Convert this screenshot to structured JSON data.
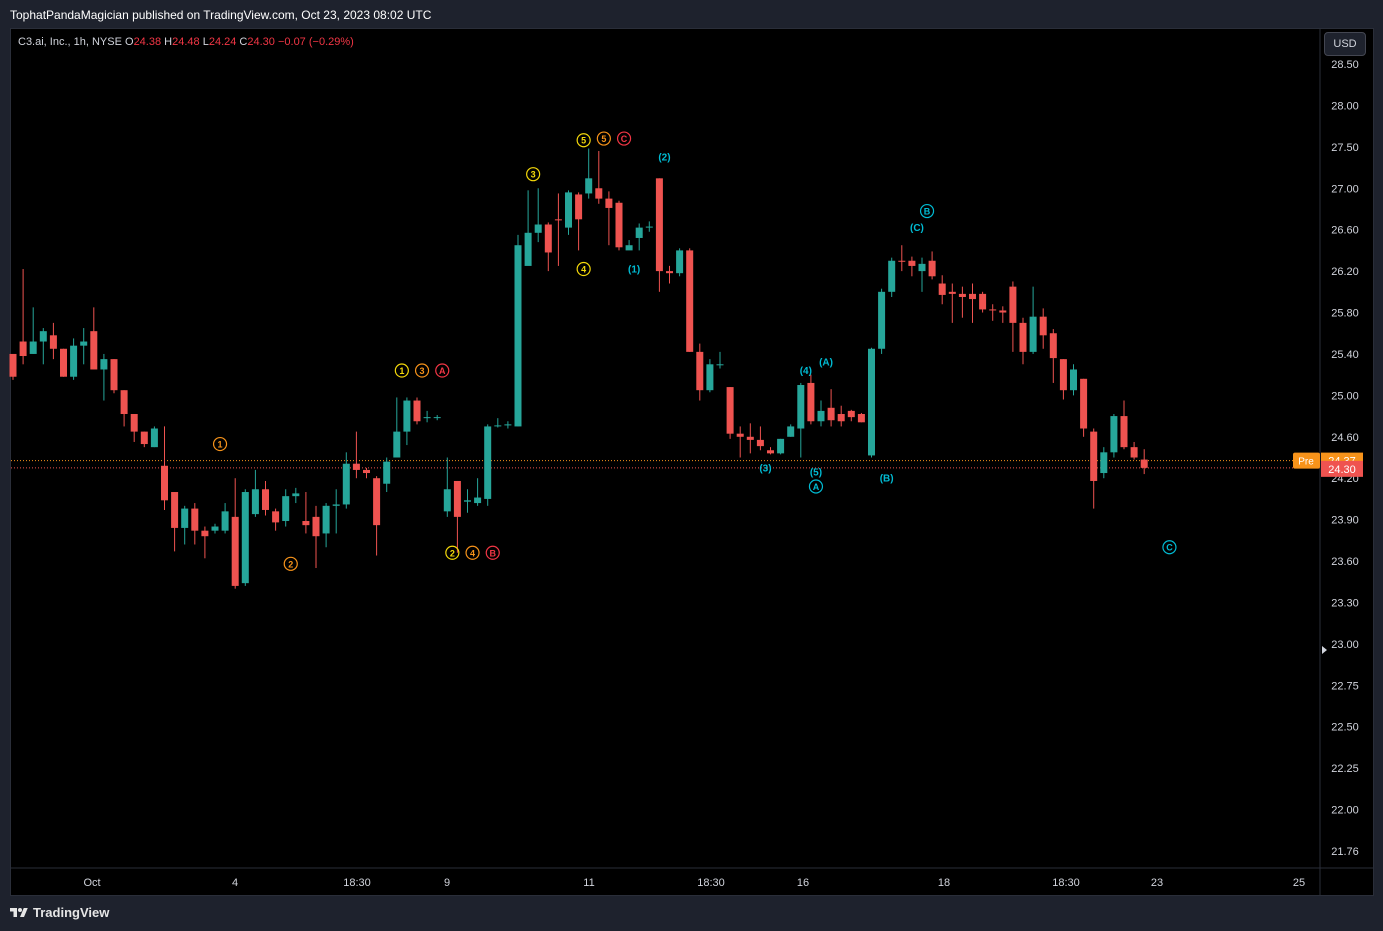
{
  "header": {
    "publisher_line": "TophatPandaMagician published on TradingView.com, Oct 23, 2023 08:02 UTC"
  },
  "legend": {
    "symbol": "C3.ai, Inc., 1h, NYSE",
    "o_label": "O",
    "o_value": "24.38",
    "h_label": "H",
    "h_value": "24.48",
    "l_label": "L",
    "l_value": "24.24",
    "c_label": "C",
    "c_value": "24.30",
    "change": "−0.07 (−0.29%)"
  },
  "currency_button": "USD",
  "footer": {
    "brand": "TradingView"
  },
  "colors": {
    "up": "#26a69a",
    "down": "#ef5350",
    "pre": "#f7931a",
    "wave_yellow": "#f5d90a",
    "wave_orange": "#f7931a",
    "wave_red": "#f23645",
    "wave_cyan": "#00bcd4"
  },
  "chart_data": {
    "type": "candlestick",
    "ylim": [
      21.6,
      28.6
    ],
    "y_ticks": [
      "28.50",
      "28.00",
      "27.50",
      "27.00",
      "26.60",
      "26.20",
      "25.80",
      "25.40",
      "25.00",
      "24.60",
      "24.20",
      "23.90",
      "23.60",
      "23.30",
      "23.00",
      "22.75",
      "22.50",
      "22.25",
      "22.00",
      "21.76"
    ],
    "x_ticks": [
      "Oct",
      "4",
      "18:30",
      "9",
      "11",
      "18:30",
      "16",
      "18",
      "18:30",
      "23",
      "25"
    ],
    "last_price": {
      "label": "24.30",
      "value": 24.3
    },
    "pre_price": {
      "tag": "Pre",
      "label": "24.37",
      "value": 24.37
    },
    "candles": [
      [
        25.4,
        25.18,
        25.4,
        25.15
      ],
      [
        25.52,
        25.38,
        26.22,
        25.3
      ],
      [
        25.4,
        25.52,
        25.85,
        25.4
      ],
      [
        25.52,
        25.62,
        25.65,
        25.3
      ],
      [
        25.58,
        25.45,
        25.7,
        25.35
      ],
      [
        25.45,
        25.18,
        25.45,
        25.18
      ],
      [
        25.18,
        25.48,
        25.55,
        25.15
      ],
      [
        25.48,
        25.52,
        25.65,
        25.3
      ],
      [
        25.62,
        25.25,
        25.85,
        25.25
      ],
      [
        25.25,
        25.35,
        25.4,
        24.95
      ],
      [
        25.35,
        25.05,
        25.35,
        25.02
      ],
      [
        25.05,
        24.82,
        25.05,
        24.7
      ],
      [
        24.82,
        24.65,
        24.82,
        24.55
      ],
      [
        24.65,
        24.53,
        24.65,
        24.5
      ],
      [
        24.5,
        24.68,
        24.7,
        24.5
      ],
      [
        24.32,
        24.04,
        24.7,
        23.97
      ],
      [
        24.1,
        23.84,
        24.1,
        23.67
      ],
      [
        23.84,
        23.98,
        24.0,
        23.72
      ],
      [
        23.98,
        23.82,
        24.02,
        23.72
      ],
      [
        23.82,
        23.78,
        23.85,
        23.62
      ],
      [
        23.82,
        23.85,
        23.87,
        23.8
      ],
      [
        23.82,
        23.96,
        24.02,
        23.8
      ],
      [
        23.92,
        23.42,
        24.2,
        23.4
      ],
      [
        23.44,
        24.1,
        24.12,
        23.42
      ],
      [
        23.94,
        24.12,
        24.28,
        23.92
      ],
      [
        24.12,
        23.97,
        24.18,
        23.93
      ],
      [
        23.96,
        23.88,
        23.98,
        23.82
      ],
      [
        23.89,
        24.07,
        24.12,
        23.85
      ],
      [
        24.07,
        24.09,
        24.13,
        24.02
      ],
      [
        23.89,
        23.86,
        24.1,
        23.8
      ],
      [
        23.92,
        23.78,
        24.0,
        23.55
      ],
      [
        23.8,
        24.0,
        24.02,
        23.7
      ],
      [
        24.0,
        24.01,
        24.12,
        23.8
      ],
      [
        24.01,
        24.34,
        24.45,
        23.98
      ],
      [
        24.34,
        24.28,
        24.65,
        24.2
      ],
      [
        24.28,
        24.25,
        24.3,
        24.2
      ],
      [
        24.2,
        23.86,
        24.22,
        23.64
      ],
      [
        24.16,
        24.36,
        24.4,
        24.1
      ],
      [
        24.4,
        24.65,
        24.98,
        24.4
      ],
      [
        24.65,
        24.95,
        24.98,
        24.52
      ],
      [
        24.95,
        24.75,
        24.98,
        24.72
      ],
      [
        24.78,
        24.79,
        24.85,
        24.74
      ],
      [
        24.79,
        24.79,
        24.81,
        24.76
      ],
      [
        23.96,
        24.12,
        24.4,
        23.92
      ],
      [
        24.18,
        23.92,
        24.18,
        23.66
      ],
      [
        24.03,
        24.04,
        24.12,
        23.95
      ],
      [
        24.02,
        24.06,
        24.2,
        24.0
      ],
      [
        24.05,
        24.7,
        24.72,
        24.0
      ],
      [
        24.71,
        24.71,
        24.78,
        24.69
      ],
      [
        24.71,
        24.72,
        24.75,
        24.68
      ],
      [
        24.7,
        26.45,
        26.55,
        24.7
      ],
      [
        26.25,
        26.57,
        26.98,
        26.38
      ],
      [
        26.57,
        26.65,
        27.0,
        26.48
      ],
      [
        26.65,
        26.38,
        26.67,
        26.2
      ],
      [
        26.7,
        26.69,
        26.95,
        26.25
      ],
      [
        26.62,
        26.96,
        26.98,
        26.55
      ],
      [
        26.94,
        26.7,
        26.96,
        26.4
      ],
      [
        26.95,
        27.12,
        27.48,
        26.9
      ],
      [
        27.0,
        26.9,
        27.45,
        26.85
      ],
      [
        26.9,
        26.81,
        26.97,
        26.45
      ],
      [
        26.86,
        26.43,
        26.88,
        26.4
      ],
      [
        26.4,
        26.45,
        26.5,
        26.42
      ],
      [
        26.52,
        26.62,
        26.66,
        26.4
      ],
      [
        26.62,
        26.63,
        26.68,
        26.58
      ],
      [
        27.12,
        26.2,
        27.12,
        26.0
      ],
      [
        26.2,
        26.18,
        26.25,
        26.08
      ],
      [
        26.18,
        26.4,
        26.42,
        26.15
      ],
      [
        26.4,
        25.42,
        26.42,
        25.42
      ],
      [
        25.42,
        25.05,
        25.5,
        24.95
      ],
      [
        25.05,
        25.3,
        25.35,
        25.03
      ],
      [
        25.3,
        25.3,
        25.42,
        25.26
      ],
      [
        25.08,
        24.63,
        25.08,
        24.58
      ],
      [
        24.63,
        24.6,
        24.7,
        24.4
      ],
      [
        24.6,
        24.57,
        24.73,
        24.44
      ],
      [
        24.57,
        24.51,
        24.7,
        24.47
      ],
      [
        24.47,
        24.44,
        24.5,
        24.43
      ],
      [
        24.44,
        24.58,
        24.58,
        24.43
      ],
      [
        24.6,
        24.7,
        24.72,
        24.6
      ],
      [
        24.68,
        25.1,
        25.12,
        24.4
      ],
      [
        25.12,
        24.75,
        25.2,
        24.72
      ],
      [
        24.75,
        24.85,
        24.95,
        24.7
      ],
      [
        24.88,
        24.76,
        25.06,
        24.7
      ],
      [
        24.82,
        24.75,
        24.9,
        24.7
      ],
      [
        24.85,
        24.79,
        24.86,
        24.75
      ],
      [
        24.82,
        24.74,
        24.83,
        24.74
      ],
      [
        24.42,
        25.45,
        25.46,
        24.4
      ],
      [
        25.45,
        26.0,
        26.03,
        25.4
      ],
      [
        26.0,
        26.3,
        26.33,
        25.95
      ],
      [
        26.3,
        26.29,
        26.45,
        26.2
      ],
      [
        26.3,
        26.25,
        26.34,
        26.15
      ],
      [
        26.2,
        26.27,
        26.33,
        26.0
      ],
      [
        26.3,
        26.15,
        26.39,
        26.12
      ],
      [
        26.08,
        25.97,
        26.16,
        25.88
      ],
      [
        26.0,
        25.98,
        26.08,
        25.7
      ],
      [
        25.98,
        25.95,
        26.05,
        25.75
      ],
      [
        25.98,
        25.93,
        26.08,
        25.7
      ],
      [
        25.98,
        25.83,
        26.0,
        25.8
      ],
      [
        25.83,
        25.82,
        25.88,
        25.72
      ],
      [
        25.82,
        25.8,
        25.86,
        25.7
      ],
      [
        26.05,
        25.7,
        26.1,
        25.42
      ],
      [
        25.7,
        25.42,
        25.75,
        25.3
      ],
      [
        25.42,
        25.76,
        26.05,
        25.4
      ],
      [
        25.76,
        25.58,
        25.84,
        25.45
      ],
      [
        25.6,
        25.36,
        25.64,
        25.12
      ],
      [
        25.35,
        25.05,
        25.35,
        24.96
      ],
      [
        25.05,
        25.25,
        25.3,
        25.0
      ],
      [
        25.16,
        24.68,
        25.16,
        24.6
      ],
      [
        24.65,
        24.18,
        24.68,
        23.98
      ],
      [
        24.25,
        24.45,
        24.5,
        24.2
      ],
      [
        24.45,
        24.8,
        24.82,
        24.4
      ],
      [
        24.8,
        24.5,
        24.95,
        24.48
      ],
      [
        24.5,
        24.4,
        24.55,
        24.38
      ],
      [
        24.38,
        24.3,
        24.48,
        24.24
      ]
    ],
    "wave_labels": [
      {
        "text": "1",
        "circled": true,
        "color": "wave_orange",
        "bar": 20.5,
        "price": 24.53
      },
      {
        "text": "2",
        "circled": true,
        "color": "wave_orange",
        "bar": 27.5,
        "price": 23.58
      },
      {
        "text": "1",
        "circled": true,
        "color": "wave_yellow",
        "bar": 38.5,
        "price": 25.24
      },
      {
        "text": "3",
        "circled": true,
        "color": "wave_orange",
        "bar": 40.5,
        "price": 25.24
      },
      {
        "text": "A",
        "circled": true,
        "color": "wave_red",
        "bar": 42.5,
        "price": 25.24
      },
      {
        "text": "2",
        "circled": true,
        "color": "wave_yellow",
        "bar": 43.5,
        "price": 23.66
      },
      {
        "text": "4",
        "circled": true,
        "color": "wave_orange",
        "bar": 45.5,
        "price": 23.66
      },
      {
        "text": "B",
        "circled": true,
        "color": "wave_red",
        "bar": 47.5,
        "price": 23.66
      },
      {
        "text": "3",
        "circled": true,
        "color": "wave_yellow",
        "bar": 51.5,
        "price": 27.17
      },
      {
        "text": "5",
        "circled": true,
        "color": "wave_yellow",
        "bar": 56.5,
        "price": 27.58
      },
      {
        "text": "5",
        "circled": true,
        "color": "wave_orange",
        "bar": 58.5,
        "price": 27.6
      },
      {
        "text": "C",
        "circled": true,
        "color": "wave_red",
        "bar": 60.5,
        "price": 27.6
      },
      {
        "text": "4",
        "circled": true,
        "color": "wave_yellow",
        "bar": 56.5,
        "price": 26.22
      },
      {
        "text": "(2)",
        "circled": false,
        "color": "wave_cyan",
        "bar": 64.5,
        "price": 27.38
      },
      {
        "text": "(1)",
        "circled": false,
        "color": "wave_cyan",
        "bar": 61.5,
        "price": 26.22
      },
      {
        "text": "(3)",
        "circled": false,
        "color": "wave_cyan",
        "bar": 74.5,
        "price": 24.3
      },
      {
        "text": "(4)",
        "circled": false,
        "color": "wave_cyan",
        "bar": 78.5,
        "price": 25.24
      },
      {
        "text": "(A)",
        "circled": false,
        "color": "wave_cyan",
        "bar": 80.5,
        "price": 25.32
      },
      {
        "text": "(5)",
        "circled": false,
        "color": "wave_cyan",
        "bar": 79.5,
        "price": 24.26
      },
      {
        "text": "A",
        "circled": true,
        "color": "wave_cyan",
        "bar": 79.5,
        "price": 24.14
      },
      {
        "text": "(B)",
        "circled": false,
        "color": "wave_cyan",
        "bar": 86.5,
        "price": 24.2
      },
      {
        "text": "(C)",
        "circled": false,
        "color": "wave_cyan",
        "bar": 89.5,
        "price": 26.62
      },
      {
        "text": "B",
        "circled": true,
        "color": "wave_cyan",
        "bar": 90.5,
        "price": 26.78
      },
      {
        "text": "C",
        "circled": true,
        "color": "wave_cyan",
        "bar": 114.5,
        "price": 23.7
      }
    ]
  }
}
